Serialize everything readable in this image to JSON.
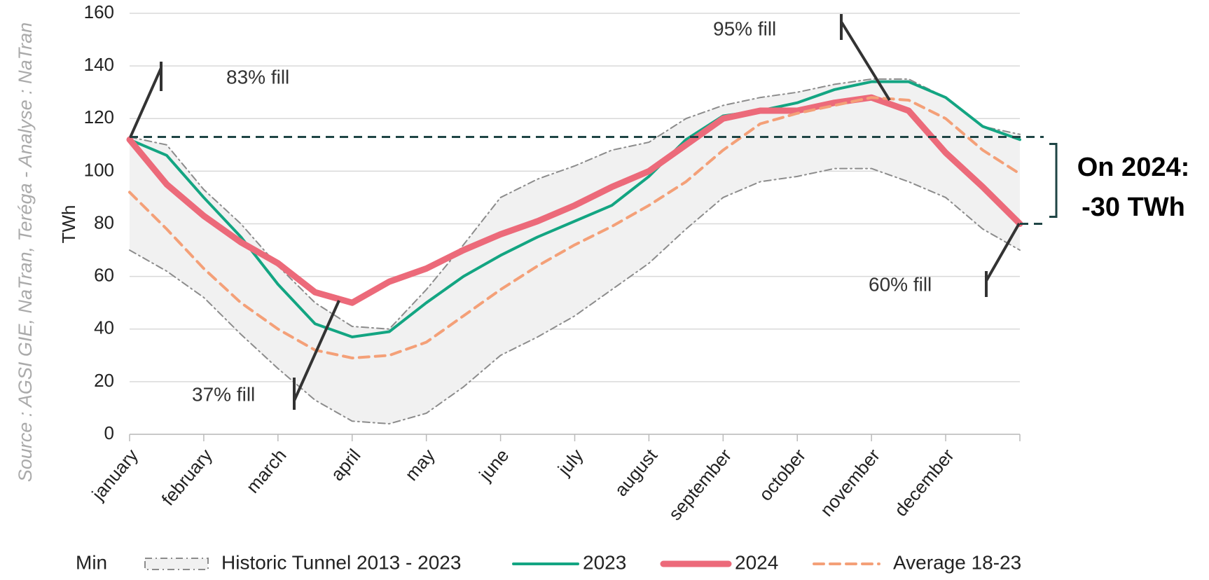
{
  "chart_data": {
    "type": "line",
    "source": "Source : AGSI GIE, NaTran, Teréga - Analyse : NaTran",
    "y_label": "TWh",
    "x": [
      0,
      0.5,
      1,
      1.5,
      2,
      2.5,
      3,
      3.5,
      4,
      4.5,
      5,
      5.5,
      6,
      6.5,
      7,
      7.5,
      8,
      8.5,
      9,
      9.5,
      10,
      10.5,
      11,
      11.5,
      12
    ],
    "xlim": [
      0,
      12
    ],
    "xticks": [
      {
        "value": 0,
        "label": "january"
      },
      {
        "value": 1,
        "label": "february"
      },
      {
        "value": 2,
        "label": "march"
      },
      {
        "value": 3,
        "label": "april"
      },
      {
        "value": 4,
        "label": "may"
      },
      {
        "value": 5,
        "label": "june"
      },
      {
        "value": 6,
        "label": "july"
      },
      {
        "value": 7,
        "label": "august"
      },
      {
        "value": 8,
        "label": "september"
      },
      {
        "value": 9,
        "label": "october"
      },
      {
        "value": 10,
        "label": "november"
      },
      {
        "value": 11,
        "label": "december"
      }
    ],
    "ylim": [
      0,
      160
    ],
    "yticks": [
      0,
      20,
      40,
      60,
      80,
      100,
      120,
      140,
      160
    ],
    "grid": true,
    "series": [
      {
        "name": "Min",
        "color": "#8c8c8c",
        "values": [
          70,
          62,
          52,
          38,
          25,
          13,
          5,
          4,
          8,
          18,
          30,
          37,
          45,
          55,
          65,
          78,
          90,
          96,
          98,
          101,
          101,
          96,
          90,
          78,
          70
        ]
      },
      {
        "name": "Historic Tunnel 2013 - 2023",
        "color": "#8c8c8c",
        "values": [
          113,
          110,
          93,
          80,
          64,
          50,
          41,
          40,
          55,
          72,
          90,
          97,
          102,
          108,
          111,
          120,
          125,
          128,
          130,
          133,
          135,
          135,
          128,
          117,
          114
        ]
      },
      {
        "name": "2023",
        "color": "#13a582",
        "values": [
          112,
          106,
          90,
          75,
          57,
          42,
          37,
          39,
          50,
          60,
          68,
          75,
          81,
          87,
          98,
          112,
          121,
          123,
          126,
          131,
          134,
          134,
          128,
          117,
          112
        ]
      },
      {
        "name": "2024",
        "color": "#ec6a7a",
        "values": [
          112,
          95,
          83,
          73,
          65,
          54,
          50,
          58,
          63,
          70,
          76,
          81,
          87,
          94,
          100,
          110,
          120,
          123,
          123,
          126,
          128,
          123,
          107,
          94,
          80
        ]
      },
      {
        "name": "Average 18-23",
        "color": "#f4a078",
        "values": [
          92,
          78,
          63,
          50,
          40,
          32,
          29,
          30,
          35,
          45,
          55,
          64,
          72,
          79,
          87,
          96,
          108,
          118,
          122,
          125,
          128,
          127,
          120,
          108,
          99
        ]
      }
    ],
    "reference_line": 113,
    "annotations": [
      "83% fill",
      "95% fill",
      "37% fill",
      "60% fill",
      "On 2024:",
      "-30 TWh"
    ]
  }
}
